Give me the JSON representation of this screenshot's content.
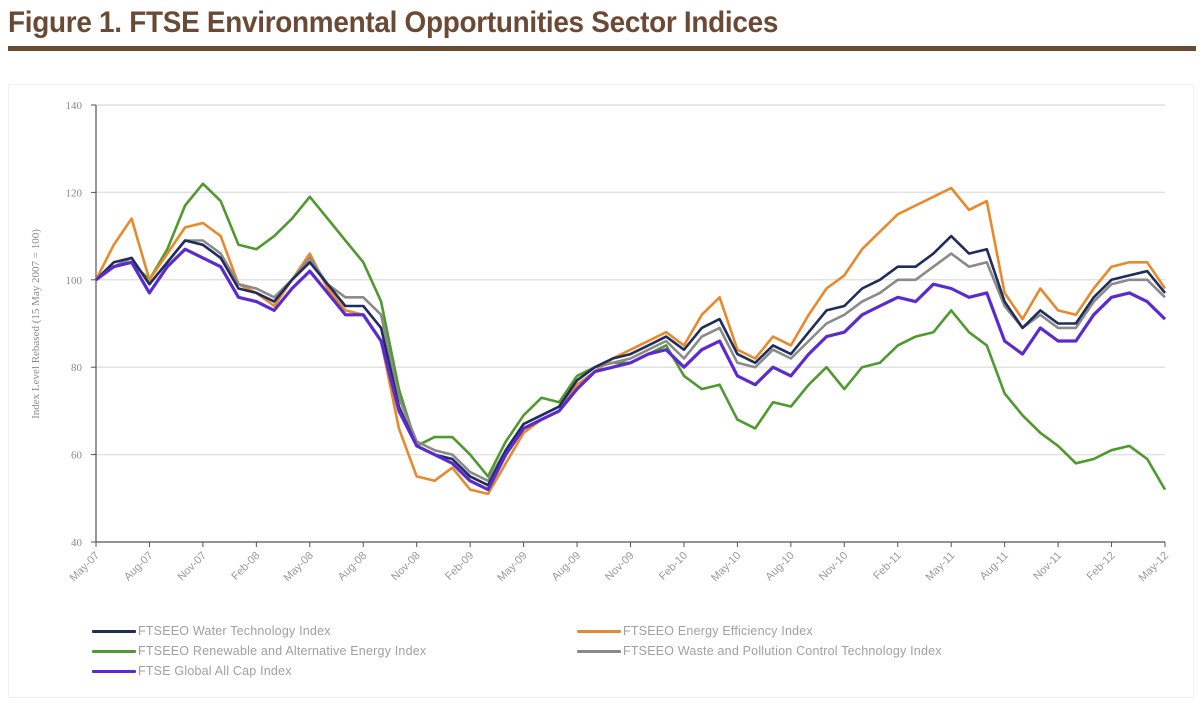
{
  "figure": {
    "title": "Figure 1.  FTSE Environmental Opportunities Sector Indices",
    "accent_color": "#6b4a35"
  },
  "chart_data": {
    "type": "line",
    "title": "",
    "xlabel": "",
    "ylabel": "Index Level Rebased (15 May 2007 = 100)",
    "ylim": [
      40,
      140
    ],
    "yticks": [
      40,
      60,
      80,
      100,
      120,
      140
    ],
    "ytick_labels": [
      "40",
      "60",
      "80",
      "100",
      "120",
      "140"
    ],
    "grid": true,
    "legend_position": "bottom",
    "x_tick_labels": [
      "May-07",
      "Aug-07",
      "Nov-07",
      "Feb-08",
      "May-08",
      "Aug-08",
      "Nov-08",
      "Feb-09",
      "May-09",
      "Aug-09",
      "Nov-09",
      "Feb-10",
      "May-10",
      "Aug-10",
      "Nov-10",
      "Feb-11",
      "May-11",
      "Aug-11",
      "Nov-11",
      "Feb-12",
      "May-12"
    ],
    "x": [
      "May-07",
      "Jun-07",
      "Jul-07",
      "Aug-07",
      "Sep-07",
      "Oct-07",
      "Nov-07",
      "Dec-07",
      "Jan-08",
      "Feb-08",
      "Mar-08",
      "Apr-08",
      "May-08",
      "Jun-08",
      "Jul-08",
      "Aug-08",
      "Sep-08",
      "Oct-08",
      "Nov-08",
      "Dec-08",
      "Jan-09",
      "Feb-09",
      "Mar-09",
      "Apr-09",
      "May-09",
      "Jun-09",
      "Jul-09",
      "Aug-09",
      "Sep-09",
      "Oct-09",
      "Nov-09",
      "Dec-09",
      "Jan-10",
      "Feb-10",
      "Mar-10",
      "Apr-10",
      "May-10",
      "Jun-10",
      "Jul-10",
      "Aug-10",
      "Sep-10",
      "Oct-10",
      "Nov-10",
      "Dec-10",
      "Jan-11",
      "Feb-11",
      "Mar-11",
      "Apr-11",
      "May-11",
      "Jun-11",
      "Jul-11",
      "Aug-11",
      "Sep-11",
      "Oct-11",
      "Nov-11",
      "Dec-11",
      "Jan-12",
      "Feb-12",
      "Mar-12",
      "Apr-12",
      "May-12"
    ],
    "series": [
      {
        "name": "FTSEEO Water Technology Index",
        "color": "#1f2d5c",
        "values": [
          100,
          104,
          105,
          99,
          104,
          109,
          108,
          105,
          98,
          97,
          95,
          100,
          104,
          99,
          94,
          94,
          89,
          71,
          62,
          60,
          59,
          55,
          53,
          61,
          67,
          69,
          71,
          77,
          80,
          82,
          83,
          85,
          87,
          84,
          89,
          91,
          83,
          81,
          85,
          83,
          88,
          93,
          94,
          98,
          100,
          103,
          103,
          106,
          110,
          106,
          107,
          95,
          89,
          93,
          90,
          90,
          96,
          100,
          101,
          102,
          97
        ]
      },
      {
        "name": "FTSEEO Energy Efficiency Index",
        "color": "#e8892a",
        "values": [
          100,
          108,
          114,
          100,
          106,
          112,
          113,
          110,
          99,
          97,
          94,
          100,
          106,
          98,
          93,
          92,
          86,
          66,
          55,
          54,
          57,
          52,
          51,
          58,
          65,
          68,
          70,
          76,
          79,
          82,
          84,
          86,
          88,
          85,
          92,
          96,
          84,
          82,
          87,
          85,
          92,
          98,
          101,
          107,
          111,
          115,
          117,
          119,
          121,
          116,
          118,
          97,
          91,
          98,
          93,
          92,
          98,
          103,
          104,
          104,
          98
        ]
      },
      {
        "name": "FTSEEO Renewable and Alternative Energy Index",
        "color": "#4f9a2e",
        "values": [
          100,
          103,
          104,
          100,
          107,
          117,
          122,
          118,
          108,
          107,
          110,
          114,
          119,
          114,
          109,
          104,
          95,
          75,
          62,
          64,
          64,
          60,
          55,
          63,
          69,
          73,
          72,
          78,
          80,
          81,
          81,
          83,
          85,
          78,
          75,
          76,
          68,
          66,
          72,
          71,
          76,
          80,
          75,
          80,
          81,
          85,
          87,
          88,
          93,
          88,
          85,
          74,
          69,
          65,
          62,
          58,
          59,
          61,
          62,
          59,
          52
        ]
      },
      {
        "name": "FTSEEO Waste and Pollution Control Technology Index",
        "color": "#8a8a8a",
        "values": [
          100,
          103,
          105,
          99,
          104,
          109,
          109,
          106,
          99,
          98,
          96,
          100,
          105,
          99,
          96,
          96,
          92,
          73,
          63,
          61,
          60,
          56,
          54,
          61,
          67,
          69,
          71,
          77,
          80,
          81,
          82,
          84,
          86,
          82,
          87,
          89,
          81,
          80,
          84,
          82,
          86,
          90,
          92,
          95,
          97,
          100,
          100,
          103,
          106,
          103,
          104,
          94,
          89,
          92,
          89,
          89,
          95,
          99,
          100,
          100,
          96
        ]
      },
      {
        "name": "FTSE Global All Cap Index",
        "color": "#5b2bd0",
        "values": [
          100,
          103,
          104,
          97,
          103,
          107,
          105,
          103,
          96,
          95,
          93,
          98,
          102,
          97,
          92,
          92,
          86,
          70,
          62,
          60,
          58,
          54,
          52,
          60,
          66,
          68,
          70,
          75,
          79,
          80,
          81,
          83,
          84,
          80,
          84,
          86,
          78,
          76,
          80,
          78,
          83,
          87,
          88,
          92,
          94,
          96,
          95,
          99,
          98,
          96,
          97,
          86,
          83,
          89,
          86,
          86,
          92,
          96,
          97,
          95,
          91
        ]
      }
    ]
  },
  "legend": {
    "items": [
      {
        "label": "FTSEEO Water Technology Index",
        "color": "#1f2d5c"
      },
      {
        "label": "FTSEEO Energy Efficiency Index",
        "color": "#e8892a"
      },
      {
        "label": "FTSEEO Renewable and Alternative Energy Index",
        "color": "#4f9a2e"
      },
      {
        "label": "FTSEEO Waste and Pollution Control Technology Index",
        "color": "#8a8a8a"
      },
      {
        "label": "FTSE Global All Cap Index",
        "color": "#5b2bd0"
      }
    ]
  }
}
